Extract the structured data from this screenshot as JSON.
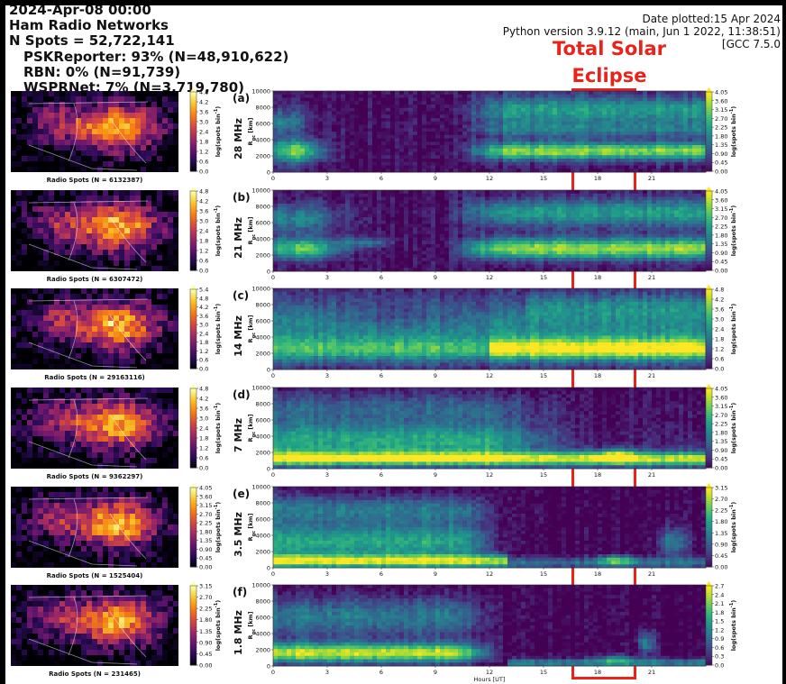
{
  "header": {
    "title": "2024-Apr-08 00:00",
    "networks_title": "Ham Radio Networks",
    "total_spots": "N Spots = 52,722,141",
    "sources": [
      "PSKReporter: 93% (N=48,910,622)",
      "RBN: 0% (N=91,739)",
      "WSPRNet: 7% (N=3,719,780)"
    ],
    "date_plotted": "Date plotted:15 Apr 2024",
    "python_version": "Python version 3.9.12 (main, Jun  1 2022, 11:38:51)",
    "gcc": "[GCC 7.5.0"
  },
  "annotation": {
    "line1": "Total Solar",
    "line2": "Eclipse",
    "color": "#e8231c",
    "hours": [
      17.8,
      21.9
    ]
  },
  "common": {
    "ylabel_main": "R",
    "ylabel_sub": "gc",
    "ylabel_unit": "[km]",
    "cb_label": "log(spots bin",
    "cb_label_sup": "-1",
    "cb_label_end": ")",
    "xlabel": "Hours [UT]",
    "map_colors": "inferno",
    "rti_colors": "viridis"
  },
  "chart_data": [
    {
      "type": "heatmap",
      "panel": "(a)",
      "freq": "28 MHz",
      "map_caption": "Radio Spots (N = 6132387)",
      "map_cb_ticks": [
        "4.8",
        "4.2",
        "3.6",
        "3.0",
        "2.4",
        "1.8",
        "1.2",
        "0.6",
        "0.0"
      ],
      "rti_cb_ticks": [
        "4.05",
        "3.60",
        "3.15",
        "2.70",
        "2.25",
        "1.80",
        "1.35",
        "0.90",
        "0.45",
        "0.00"
      ],
      "x_ticks": [
        "0",
        "3",
        "6",
        "9",
        "12",
        "15",
        "18",
        "21"
      ],
      "y_ticks": [
        "10000",
        "8000",
        "6000",
        "4000",
        "2000",
        "0"
      ],
      "xlim": [
        0,
        24
      ],
      "ylim": [
        0,
        10000
      ]
    },
    {
      "type": "heatmap",
      "panel": "(b)",
      "freq": "21 MHz",
      "map_caption": "Radio Spots (N = 6307472)",
      "map_cb_ticks": [
        "4.8",
        "4.2",
        "3.6",
        "3.0",
        "2.4",
        "1.8",
        "1.2",
        "0.6",
        "0.0"
      ],
      "rti_cb_ticks": [
        "4.05",
        "3.60",
        "3.15",
        "2.70",
        "2.25",
        "1.80",
        "1.35",
        "0.90",
        "0.45",
        "0.00"
      ],
      "x_ticks": [
        "0",
        "3",
        "6",
        "9",
        "12",
        "15",
        "18",
        "21"
      ],
      "y_ticks": [
        "10000",
        "8000",
        "6000",
        "4000",
        "2000",
        "0"
      ],
      "xlim": [
        0,
        24
      ],
      "ylim": [
        0,
        10000
      ]
    },
    {
      "type": "heatmap",
      "panel": "(c)",
      "freq": "14 MHz",
      "map_caption": "Radio Spots (N = 29163116)",
      "map_cb_ticks": [
        "5.4",
        "4.8",
        "4.2",
        "3.6",
        "3.0",
        "2.4",
        "1.8",
        "1.2",
        "0.6",
        "0.0"
      ],
      "rti_cb_ticks": [
        "4.8",
        "4.2",
        "3.6",
        "3.0",
        "2.4",
        "1.8",
        "1.2",
        "0.6",
        "0.0"
      ],
      "x_ticks": [
        "0",
        "3",
        "6",
        "9",
        "12",
        "15",
        "18",
        "21"
      ],
      "y_ticks": [
        "10000",
        "8000",
        "6000",
        "4000",
        "2000",
        "0"
      ],
      "xlim": [
        0,
        24
      ],
      "ylim": [
        0,
        10000
      ]
    },
    {
      "type": "heatmap",
      "panel": "(d)",
      "freq": "7 MHz",
      "map_caption": "Radio Spots (N = 9362297)",
      "map_cb_ticks": [
        "4.8",
        "4.2",
        "3.6",
        "3.0",
        "2.4",
        "1.8",
        "1.2",
        "0.6",
        "0.0"
      ],
      "rti_cb_ticks": [
        "4.05",
        "3.60",
        "3.15",
        "2.70",
        "2.25",
        "1.80",
        "1.35",
        "0.90",
        "0.45",
        "0.00"
      ],
      "x_ticks": [
        "0",
        "3",
        "6",
        "9",
        "12",
        "15",
        "18",
        "21"
      ],
      "y_ticks": [
        "10000",
        "8000",
        "6000",
        "4000",
        "2000",
        "0"
      ],
      "xlim": [
        0,
        24
      ],
      "ylim": [
        0,
        10000
      ]
    },
    {
      "type": "heatmap",
      "panel": "(e)",
      "freq": "3.5 MHz",
      "map_caption": "Radio Spots (N = 1525404)",
      "map_cb_ticks": [
        "4.05",
        "3.60",
        "3.15",
        "2.70",
        "2.25",
        "1.80",
        "1.35",
        "0.90",
        "0.45",
        "0.00"
      ],
      "rti_cb_ticks": [
        "3.15",
        "2.70",
        "2.25",
        "1.80",
        "1.35",
        "0.90",
        "0.45",
        "0.00"
      ],
      "x_ticks": [
        "0",
        "3",
        "6",
        "9",
        "12",
        "15",
        "18",
        "21"
      ],
      "y_ticks": [
        "10000",
        "8000",
        "6000",
        "4000",
        "2000",
        "0"
      ],
      "xlim": [
        0,
        24
      ],
      "ylim": [
        0,
        10000
      ]
    },
    {
      "type": "heatmap",
      "panel": "(f)",
      "freq": "1.8 MHz",
      "map_caption": "Radio Spots (N = 231465)",
      "map_cb_ticks": [
        "3.15",
        "2.70",
        "2.25",
        "1.80",
        "1.35",
        "0.90",
        "0.45",
        "0.00"
      ],
      "rti_cb_ticks": [
        "2.7",
        "2.4",
        "2.1",
        "1.8",
        "1.5",
        "1.2",
        "0.9",
        "0.6",
        "0.3",
        "0.0"
      ],
      "x_ticks": [
        "0",
        "3",
        "6",
        "9",
        "12",
        "15",
        "18",
        "21"
      ],
      "y_ticks": [
        "10000",
        "8000",
        "6000",
        "4000",
        "2000",
        "0"
      ],
      "xlim": [
        0,
        24
      ],
      "ylim": [
        0,
        10000
      ]
    }
  ]
}
